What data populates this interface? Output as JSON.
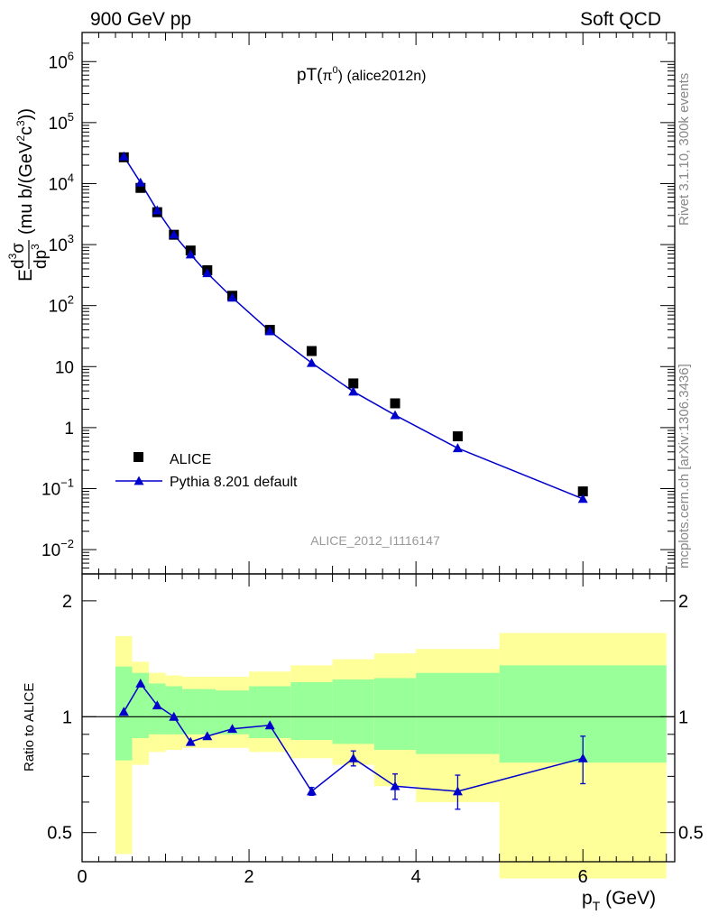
{
  "header": {
    "left": "900 GeV pp",
    "right": "Soft QCD"
  },
  "side_labels": {
    "rivet": "Rivet 3.1.10,  300k events",
    "mcplots": "mcplots.cern.ch [arXiv:1306.3436]"
  },
  "chart_data": [
    {
      "type": "scatter",
      "panel": "main",
      "title_main": "pT(",
      "title_sym": "π",
      "title_sup": "0",
      "title_tail": ") (alice2012n)",
      "ylabel_parts": {
        "E": "E",
        "d3": "d",
        "three": "3",
        "sigma": "σ",
        "dp": "dp",
        "dp3": "3",
        "units": "(mu b/(GeV",
        "two": "2",
        "c": "c",
        "c3": "3",
        "close": "))"
      },
      "watermark": "ALICE_2012_I1116147",
      "y_scale": "log",
      "xlim": [
        0,
        7.1
      ],
      "ylim": [
        0.004,
        3000000
      ],
      "y_tick_labels": [
        {
          "v": 0.01,
          "base": "10",
          "exp": "−2"
        },
        {
          "v": 0.1,
          "base": "10",
          "exp": "−1"
        },
        {
          "v": 1,
          "base": "1",
          "exp": ""
        },
        {
          "v": 10,
          "base": "10",
          "exp": ""
        },
        {
          "v": 100,
          "base": "10",
          "exp": "2"
        },
        {
          "v": 1000,
          "base": "10",
          "exp": "3"
        },
        {
          "v": 10000,
          "base": "10",
          "exp": "4"
        },
        {
          "v": 100000,
          "base": "10",
          "exp": "5"
        },
        {
          "v": 1000000,
          "base": "10",
          "exp": "6"
        }
      ],
      "legend": {
        "position": "lower-left",
        "entries": [
          "ALICE",
          "Pythia 8.201 default"
        ]
      },
      "series": [
        {
          "name": "ALICE",
          "marker": "square",
          "color": "#000000",
          "x": [
            0.5,
            0.7,
            0.9,
            1.1,
            1.3,
            1.5,
            1.8,
            2.25,
            2.75,
            3.25,
            3.75,
            4.5,
            6.0
          ],
          "y": [
            27000,
            8500,
            3400,
            1450,
            800,
            380,
            145,
            40,
            18,
            5.3,
            2.5,
            0.72,
            0.09
          ]
        },
        {
          "name": "Pythia 8.201 default",
          "marker": "triangle",
          "color": "#0000cc",
          "x": [
            0.5,
            0.7,
            0.9,
            1.1,
            1.3,
            1.5,
            1.8,
            2.25,
            2.75,
            3.25,
            3.75,
            4.5,
            6.0
          ],
          "y": [
            27900,
            10400,
            3650,
            1460,
            690,
            340,
            135,
            38,
            11.5,
            3.9,
            1.6,
            0.46,
            0.068
          ]
        }
      ]
    },
    {
      "type": "line",
      "panel": "ratio",
      "ylabel": "Ratio to ALICE",
      "xlabel_main": "p",
      "xlabel_sub": "T",
      "xlabel_unit": " (GeV)",
      "xlim": [
        0,
        7.1
      ],
      "ylim": [
        0.42,
        2.35
      ],
      "y_scale": "log",
      "x_tick_labels": [
        "0",
        "2",
        "4",
        "6"
      ],
      "y_tick_labels": [
        "0.5",
        "1",
        "2"
      ],
      "bands": [
        {
          "x0": 0.4,
          "x1": 0.6,
          "y_outer": [
            0.44,
            1.62
          ],
          "y_inner": [
            0.77,
            1.35
          ]
        },
        {
          "x0": 0.6,
          "x1": 0.8,
          "y_outer": [
            0.75,
            1.39
          ],
          "y_inner": [
            0.88,
            1.3
          ]
        },
        {
          "x0": 0.8,
          "x1": 1.0,
          "y_outer": [
            0.81,
            1.3
          ],
          "y_inner": [
            0.9,
            1.22
          ]
        },
        {
          "x0": 1.0,
          "x1": 1.2,
          "y_outer": [
            0.82,
            1.28
          ],
          "y_inner": [
            0.9,
            1.2
          ]
        },
        {
          "x0": 1.2,
          "x1": 1.4,
          "y_outer": [
            0.83,
            1.27
          ],
          "y_inner": [
            0.9,
            1.18
          ]
        },
        {
          "x0": 1.4,
          "x1": 1.6,
          "y_outer": [
            0.83,
            1.27
          ],
          "y_inner": [
            0.9,
            1.18
          ]
        },
        {
          "x0": 1.6,
          "x1": 2.0,
          "y_outer": [
            0.83,
            1.27
          ],
          "y_inner": [
            0.9,
            1.17
          ]
        },
        {
          "x0": 2.0,
          "x1": 2.5,
          "y_outer": [
            0.81,
            1.31
          ],
          "y_inner": [
            0.88,
            1.2
          ]
        },
        {
          "x0": 2.5,
          "x1": 3.0,
          "y_outer": [
            0.78,
            1.36
          ],
          "y_inner": [
            0.87,
            1.23
          ]
        },
        {
          "x0": 3.0,
          "x1": 3.5,
          "y_outer": [
            0.75,
            1.41
          ],
          "y_inner": [
            0.85,
            1.25
          ]
        },
        {
          "x0": 3.5,
          "x1": 4.0,
          "y_outer": [
            0.66,
            1.46
          ],
          "y_inner": [
            0.82,
            1.26
          ]
        },
        {
          "x0": 4.0,
          "x1": 5.0,
          "y_outer": [
            0.6,
            1.5
          ],
          "y_inner": [
            0.8,
            1.3
          ]
        },
        {
          "x0": 5.0,
          "x1": 7.0,
          "y_outer": [
            0.38,
            1.65
          ],
          "y_inner": [
            0.76,
            1.36
          ]
        }
      ],
      "series": [
        {
          "name": "Pythia 8.201 default",
          "color": "#0000cc",
          "x": [
            0.5,
            0.7,
            0.9,
            1.1,
            1.3,
            1.5,
            1.8,
            2.25,
            2.75,
            3.25,
            3.75,
            4.5,
            6.0
          ],
          "y": [
            1.03,
            1.22,
            1.07,
            1.0,
            0.86,
            0.89,
            0.93,
            0.95,
            0.64,
            0.78,
            0.66,
            0.64,
            0.78
          ],
          "err": [
            0,
            0,
            0,
            0,
            0,
            0,
            0,
            0,
            0.015,
            0.035,
            0.05,
            0.065,
            0.11
          ]
        }
      ]
    }
  ]
}
